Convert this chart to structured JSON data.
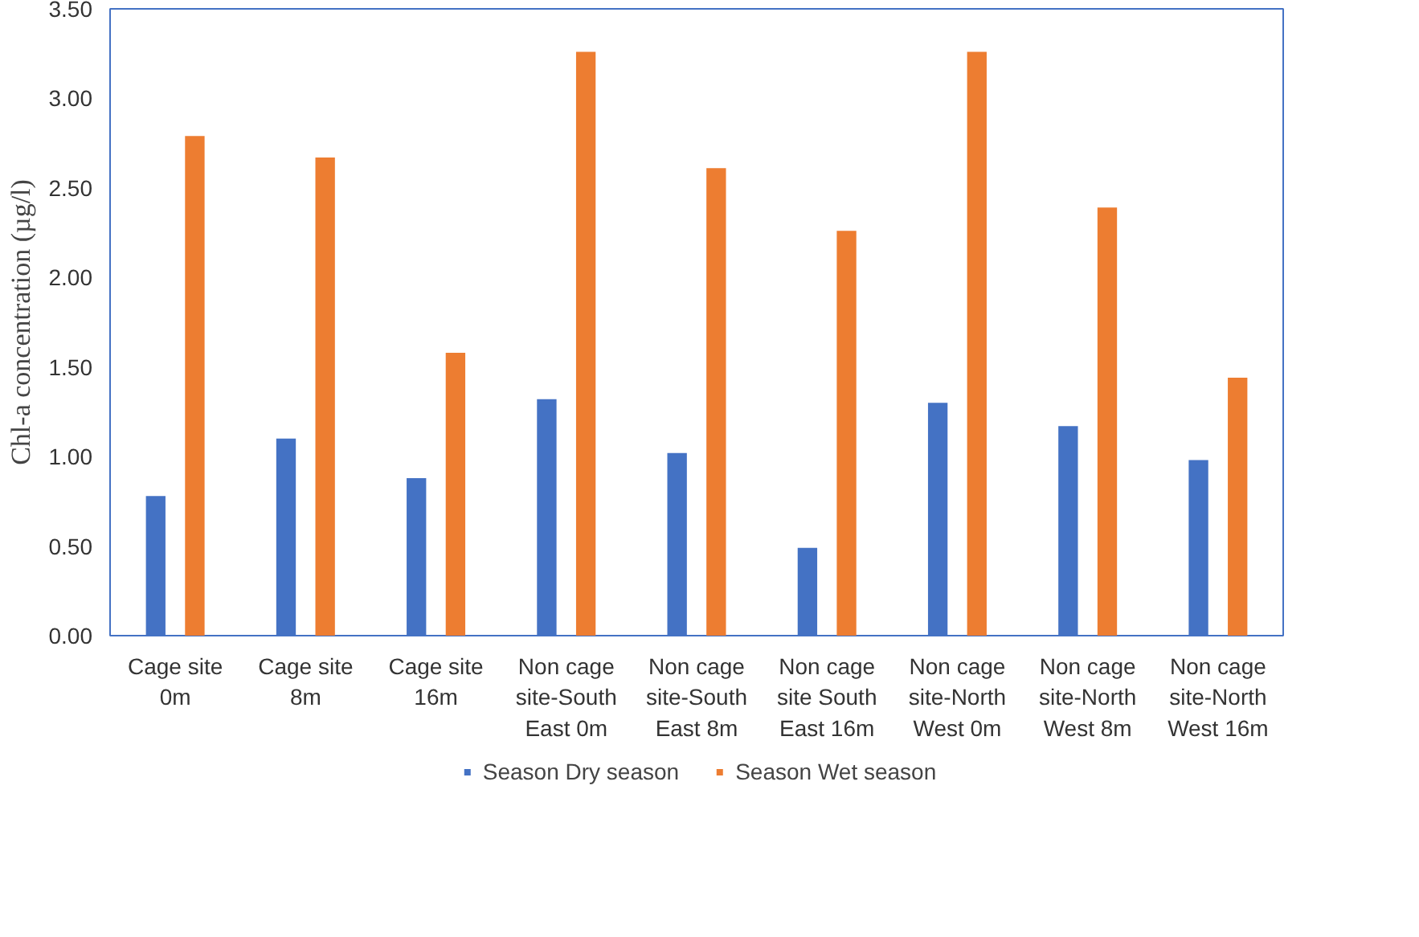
{
  "chart_data": {
    "type": "bar",
    "ylabel": "Chl-a concentration (µg/l)",
    "categories": [
      "Cage site 0m",
      "Cage site 8m",
      "Cage site 16m",
      "Non cage site-South East 0m",
      "Non cage site-South East 8m",
      "Non cage site South East 16m",
      "Non cage site-North West 0m",
      "Non cage site-North West 8m",
      "Non cage site-North West 16m"
    ],
    "series": [
      {
        "name": "Season Dry season",
        "color": "#4472c4",
        "values": [
          0.78,
          1.1,
          0.88,
          1.32,
          1.02,
          0.49,
          1.3,
          1.17,
          0.98
        ]
      },
      {
        "name": "Season Wet season",
        "color": "#ed7d31",
        "values": [
          2.79,
          2.67,
          1.58,
          3.26,
          2.61,
          2.26,
          3.26,
          2.39,
          1.44
        ]
      }
    ],
    "ylim": [
      0,
      3.5
    ],
    "yticks": [
      {
        "value": 0,
        "label": "0.00"
      },
      {
        "value": 0.5,
        "label": "0.50"
      },
      {
        "value": 1,
        "label": "1.00"
      },
      {
        "value": 1.5,
        "label": "1.50"
      },
      {
        "value": 2,
        "label": "2.00"
      },
      {
        "value": 2.5,
        "label": "2.50"
      },
      {
        "value": 3,
        "label": "3.00"
      },
      {
        "value": 3.5,
        "label": "3.50"
      }
    ],
    "legend": "bottom"
  }
}
